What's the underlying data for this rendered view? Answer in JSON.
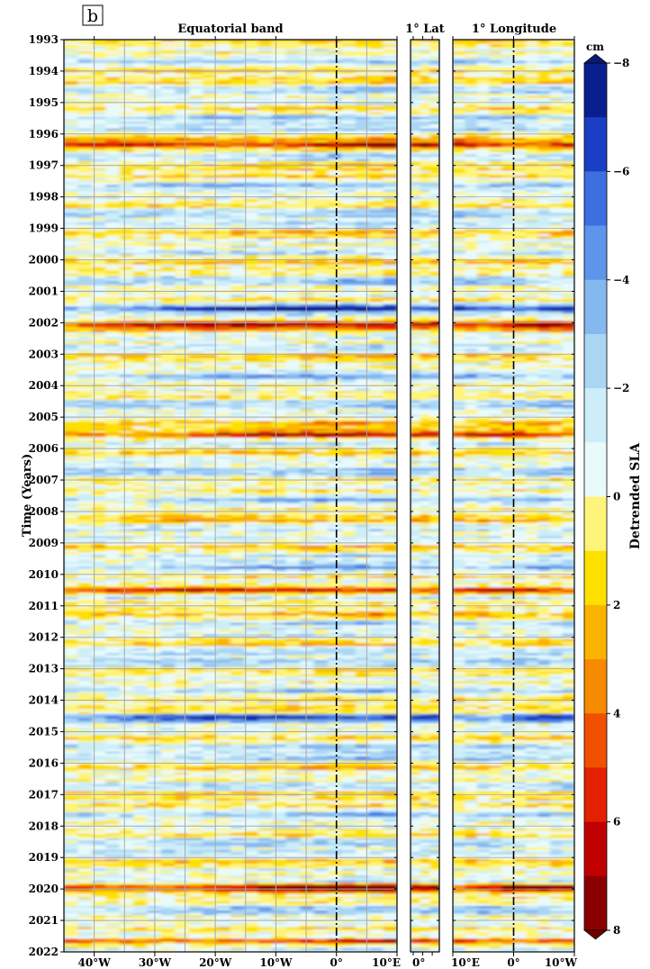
{
  "panel_label": "b",
  "chart_data": {
    "type": "heatmap",
    "ylabel": "Time (Years)",
    "ylim": [
      1993,
      2022
    ],
    "yticks": [
      1993,
      1994,
      1995,
      1996,
      1997,
      1998,
      1999,
      2000,
      2001,
      2002,
      2003,
      2004,
      2005,
      2006,
      2007,
      2008,
      2009,
      2010,
      2011,
      2012,
      2013,
      2014,
      2015,
      2016,
      2017,
      2018,
      2019,
      2020,
      2021,
      2022
    ],
    "grid": true,
    "panels": [
      {
        "title": "Equatorial band",
        "xlim": [
          -45,
          10
        ],
        "xticks": [
          -40,
          -30,
          -20,
          -10,
          0,
          10
        ],
        "xtick_labels": [
          "40°W",
          "30°W",
          "20°W",
          "10°W",
          "0°",
          "10°E"
        ],
        "reference_line_x": 0
      },
      {
        "title": "1° Lat",
        "xtick_labels": [
          "0°"
        ]
      },
      {
        "title": "1° Longitude",
        "xlim": [
          10,
          -10
        ],
        "xticks": [
          10,
          0,
          -10
        ],
        "xtick_labels": [
          "10°E",
          "0°",
          "10°W"
        ],
        "reference_line_x": 0
      }
    ],
    "colorbar": {
      "label": "Detrended SLA",
      "unit": "cm",
      "range": [
        -8,
        8
      ],
      "tick_values": [
        -8,
        -6,
        -4,
        -2,
        0,
        2,
        4,
        6,
        8
      ],
      "tick_labels": [
        "−8",
        "−6",
        "−4",
        "−2",
        "0",
        "2",
        "4",
        "6",
        "8"
      ],
      "levels": [
        -8,
        -7,
        -6,
        -5,
        -4,
        -3,
        -2,
        -1,
        0,
        1,
        2,
        3,
        4,
        5,
        6,
        7,
        8
      ],
      "colors": [
        "#0a1f8f",
        "#1a3fc4",
        "#3d6fe0",
        "#5e95ea",
        "#86b8f0",
        "#aad6f4",
        "#cdeef8",
        "#e9fafc",
        "#fff47a",
        "#fde000",
        "#fbb200",
        "#f68a00",
        "#f05000",
        "#e32000",
        "#c00000",
        "#8a0000"
      ]
    },
    "strong_anomaly_years": [
      {
        "year": 1996.3,
        "sign": "positive"
      },
      {
        "year": 2005.5,
        "sign": "positive"
      },
      {
        "year": 2010.5,
        "sign": "positive"
      },
      {
        "year": 2019.9,
        "sign": "positive"
      },
      {
        "year": 2021.6,
        "sign": "positive"
      },
      {
        "year": 2002.0,
        "sign": "positive"
      },
      {
        "year": 2001.5,
        "sign": "negative"
      },
      {
        "year": 2014.5,
        "sign": "negative"
      }
    ]
  }
}
